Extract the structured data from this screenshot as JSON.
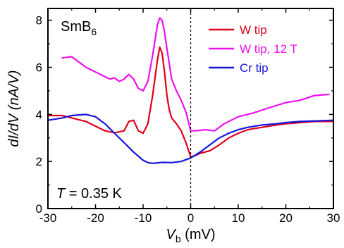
{
  "chart_data": {
    "type": "line",
    "title": "",
    "xlabel_main": "V",
    "xlabel_sub": "b",
    "xlabel_unit": " (mV)",
    "ylabel": "dI/dV (nA/V)",
    "xlim": [
      -30,
      30
    ],
    "ylim": [
      0,
      8.5
    ],
    "xticks": [
      -30,
      -20,
      -10,
      0,
      10,
      20,
      30
    ],
    "yticks": [
      0,
      2,
      4,
      6,
      8
    ],
    "grid": false,
    "legend_position": "top-right",
    "material_main": "SmB",
    "material_sub": "6",
    "temperature_var": "T",
    "temperature_text": " = 0.35 K",
    "reference_line_x": 0,
    "series": [
      {
        "name": "W tip",
        "color": "#e0001a",
        "x": [
          -30,
          -27,
          -25,
          -22,
          -20,
          -18,
          -16,
          -14,
          -13,
          -12,
          -11,
          -10,
          -9,
          -8,
          -7,
          -6.5,
          -6,
          -5.5,
          -5,
          -4.5,
          -4,
          -3,
          -2,
          -1,
          0,
          1,
          2,
          4,
          6,
          8,
          10,
          12,
          15,
          18,
          20,
          23,
          26,
          30
        ],
        "values": [
          3.95,
          3.95,
          3.85,
          3.7,
          3.5,
          3.3,
          3.22,
          3.3,
          3.7,
          3.75,
          3.3,
          3.2,
          3.6,
          4.8,
          6.3,
          6.85,
          6.6,
          5.8,
          4.8,
          4.2,
          3.85,
          3.6,
          3.3,
          2.8,
          2.2,
          2.25,
          2.35,
          2.45,
          2.7,
          3.0,
          3.2,
          3.35,
          3.45,
          3.55,
          3.6,
          3.65,
          3.7,
          3.7
        ]
      },
      {
        "name": "W tip, 12 T",
        "color": "#ee10ee",
        "x": [
          -27,
          -25,
          -24,
          -22,
          -20,
          -18,
          -17,
          -16,
          -15,
          -14,
          -13,
          -12,
          -11,
          -10,
          -9,
          -8,
          -7,
          -6.5,
          -6,
          -5.5,
          -5,
          -4,
          -3,
          -2,
          -1,
          0,
          1,
          3,
          5,
          7,
          10,
          13,
          16,
          20,
          23,
          26,
          29
        ],
        "values": [
          6.4,
          6.45,
          6.3,
          6.0,
          5.8,
          5.6,
          5.5,
          5.55,
          5.4,
          5.5,
          5.7,
          5.5,
          5.1,
          5.0,
          5.4,
          6.5,
          7.8,
          8.1,
          8.0,
          7.5,
          6.8,
          5.5,
          5.0,
          4.6,
          4.1,
          3.3,
          3.3,
          3.35,
          3.3,
          3.6,
          3.9,
          4.05,
          4.25,
          4.5,
          4.6,
          4.8,
          4.85
        ]
      },
      {
        "name": "Cr tip",
        "color": "#1515e0",
        "x": [
          -30,
          -27,
          -25,
          -22,
          -20,
          -18,
          -16,
          -14,
          -12,
          -10,
          -9,
          -8,
          -6,
          -4,
          -2,
          0,
          2,
          4,
          6,
          8,
          10,
          12,
          15,
          18,
          20,
          23,
          26,
          30
        ],
        "values": [
          3.75,
          3.85,
          3.95,
          4.0,
          3.9,
          3.6,
          3.2,
          2.8,
          2.4,
          2.05,
          1.95,
          1.92,
          1.96,
          1.95,
          2.0,
          2.15,
          2.4,
          2.7,
          3.0,
          3.2,
          3.35,
          3.45,
          3.55,
          3.6,
          3.65,
          3.7,
          3.72,
          3.75
        ]
      }
    ]
  }
}
